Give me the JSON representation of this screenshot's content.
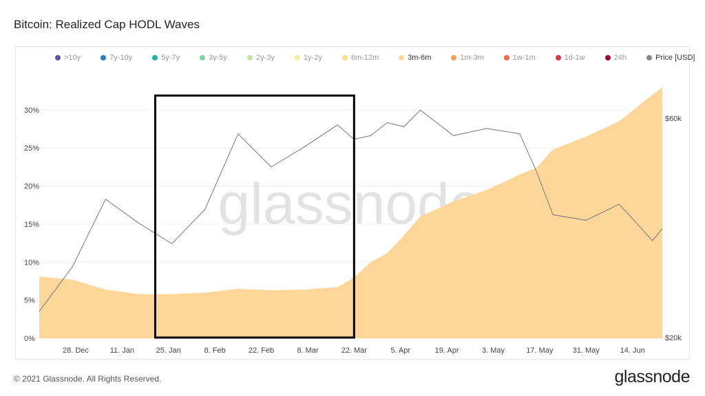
{
  "page": {
    "title": "Bitcoin: Realized Cap HODL Waves",
    "copyright": "© 2021 Glassnode. All Rights Reserved.",
    "brand": "glassnode",
    "watermark": "glassnode"
  },
  "legend": [
    {
      "label": ">10y",
      "color": "#5b57a5",
      "active": false
    },
    {
      "label": "7y-10y",
      "color": "#2f7fc1",
      "active": false
    },
    {
      "label": "5y-7y",
      "color": "#21b2a8",
      "active": false
    },
    {
      "label": "3y-5y",
      "color": "#7ed3a0",
      "active": false
    },
    {
      "label": "2y-3y",
      "color": "#c3e39a",
      "active": false
    },
    {
      "label": "1y-2y",
      "color": "#f3f0a1",
      "active": false
    },
    {
      "label": "6m-12m",
      "color": "#fbe08a",
      "active": false
    },
    {
      "label": "3m-6m",
      "color": "#fdd79a",
      "active": true
    },
    {
      "label": "1m-3m",
      "color": "#f6a15a",
      "active": false
    },
    {
      "label": "1w-1m",
      "color": "#ea6a4a",
      "active": false
    },
    {
      "label": "1d-1w",
      "color": "#d33a4a",
      "active": false
    },
    {
      "label": "24h",
      "color": "#9b0a3a",
      "active": false
    },
    {
      "label": "Price [USD]",
      "color": "#888888",
      "active": true
    }
  ],
  "chart_data": {
    "type": "area",
    "title": "Bitcoin: Realized Cap HODL Waves",
    "x_ticks": [
      "28. Dec",
      "11. Jan",
      "25. Jan",
      "8. Feb",
      "22. Feb",
      "8. Mar",
      "22. Mar",
      "5. Apr",
      "19. Apr",
      "3. May",
      "17. May",
      "31. May",
      "14. Jun"
    ],
    "y_left_ticks": [
      "0%",
      "5%",
      "10%",
      "15%",
      "20%",
      "25%",
      "30%"
    ],
    "y_left_range": [
      0,
      34.5
    ],
    "y_right_ticks": [
      "$20k",
      "$60k"
    ],
    "y_right_scale": "log",
    "grid": true,
    "x_dates": [
      "2020-12-17",
      "2020-12-27",
      "2021-01-06",
      "2021-01-16",
      "2021-01-26",
      "2021-02-05",
      "2021-02-15",
      "2021-02-25",
      "2021-03-07",
      "2021-03-17",
      "2021-03-22",
      "2021-03-27",
      "2021-04-01",
      "2021-04-06",
      "2021-04-11",
      "2021-04-21",
      "2021-05-01",
      "2021-05-11",
      "2021-05-16",
      "2021-05-21",
      "2021-05-31",
      "2021-06-10",
      "2021-06-20",
      "2021-06-23"
    ],
    "series": [
      {
        "name": "3m-6m",
        "color": "#fdd79a",
        "unit": "%",
        "values": [
          8.1,
          7.7,
          6.4,
          5.8,
          5.8,
          6.0,
          6.5,
          6.3,
          6.4,
          6.7,
          8.0,
          10.0,
          11.2,
          13.5,
          16.0,
          18.0,
          19.5,
          21.5,
          22.4,
          24.8,
          26.5,
          28.5,
          32.0,
          33.0
        ]
      },
      {
        "name": "Price [USD]",
        "color": "#777777",
        "unit": "USD",
        "values": [
          22800,
          28500,
          40000,
          35500,
          32000,
          38000,
          55500,
          47000,
          52000,
          58000,
          54000,
          55000,
          58700,
          57500,
          62500,
          55000,
          57000,
          55500,
          46000,
          37000,
          36000,
          39000,
          32500,
          34500
        ]
      }
    ],
    "annotations": [
      {
        "type": "rectangle",
        "x_start": "2021-01-21",
        "x_end": "2021-03-22",
        "color": "#000000"
      }
    ]
  }
}
